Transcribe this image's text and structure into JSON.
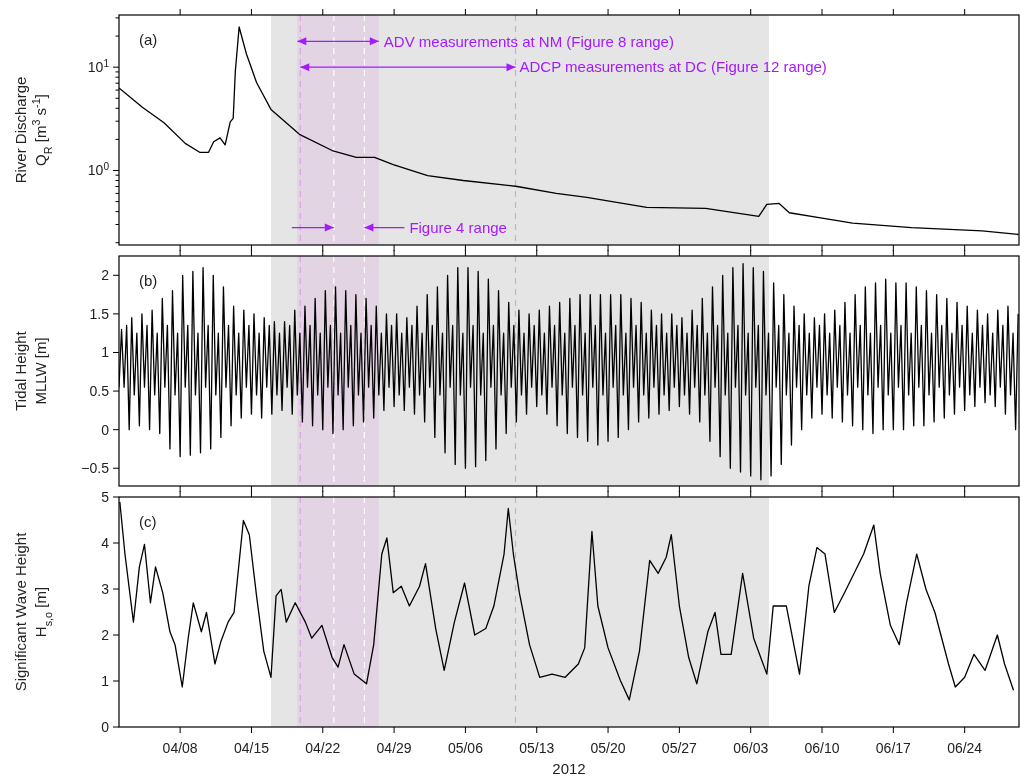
{
  "chart_data": [
    {
      "type": "line",
      "ylabel": "River Discharge\nQ$_{R}$ [m$^{3}$ s$^{-1}$]",
      "log": true,
      "tick_labels": "y",
      "xlim": [
        "2012-04-02T00:00",
        "2012-06-29T08:00"
      ],
      "ylim": [
        0.19,
        32
      ],
      "xticks": [
        {
          "value": "2012-04-08",
          "label": null
        },
        {
          "value": "2012-04-15",
          "label": null
        },
        {
          "value": "2012-04-22",
          "label": null
        },
        {
          "value": "2012-04-29",
          "label": null
        },
        {
          "value": "2012-05-06",
          "label": null
        },
        {
          "value": "2012-05-13",
          "label": null
        },
        {
          "value": "2012-05-20",
          "label": null
        },
        {
          "value": "2012-05-27",
          "label": null
        },
        {
          "value": "2012-06-03",
          "label": null
        },
        {
          "value": "2012-06-10",
          "label": null
        },
        {
          "value": "2012-06-17",
          "label": null
        },
        {
          "value": "2012-06-24",
          "label": null
        }
      ],
      "yticks": [
        {
          "value": 0.2,
          "label": null
        },
        {
          "value": 0.3,
          "label": null
        },
        {
          "value": 0.4,
          "label": null
        },
        {
          "value": 0.5,
          "label": null
        },
        {
          "value": 0.6,
          "label": null
        },
        {
          "value": 0.7,
          "label": null
        },
        {
          "value": 0.8,
          "label": null
        },
        {
          "value": 0.9,
          "label": null
        },
        {
          "value": 1,
          "label": "10$^{0}$"
        },
        {
          "value": 2,
          "label": null
        },
        {
          "value": 3,
          "label": null
        },
        {
          "value": 4,
          "label": null
        },
        {
          "value": 5,
          "label": null
        },
        {
          "value": 6,
          "label": null
        },
        {
          "value": 7,
          "label": null
        },
        {
          "value": 8,
          "label": null
        },
        {
          "value": 9,
          "label": null
        },
        {
          "value": 10,
          "label": "10$^{1}$"
        },
        {
          "value": 20,
          "label": null
        },
        {
          "value": 30,
          "label": null
        }
      ],
      "bands": [
        {
          "axis": "x",
          "from": "2012-04-16T22:00",
          "to": "2012-06-04T19:00",
          "color": "#e5e5e5"
        },
        {
          "axis": "x",
          "from": "2012-04-19T12:00",
          "to": "2012-04-27T12:00",
          "color": "#e2d4e3"
        }
      ],
      "ref_lines": [
        {
          "axis": "x",
          "value": "2012-04-19T19:00",
          "color": "#d9a3e3",
          "line_style": "dashed"
        },
        {
          "axis": "x",
          "value": "2012-05-10T22:00",
          "color": "#d9a3e3",
          "line_style": "dashed"
        },
        {
          "axis": "x",
          "value": "2012-04-23T02:00",
          "color": "#ffffff",
          "line_style": "dashed"
        },
        {
          "axis": "x",
          "value": "2012-04-26T02:00",
          "color": "#ffffff",
          "line_style": "dashed"
        }
      ],
      "annotations": [
        "(a)",
        {
          "text": "ADV measurements at NM (Figure 8 range)",
          "x": "2012-04-27T12:00",
          "y": 17.8
        },
        {
          "text": "ADCP measurements at DC (Figure 12 range)",
          "x": "2012-05-10T22:00",
          "y": 10
        },
        {
          "text": "Figure 4 range",
          "x": "2012-04-26T02:00",
          "y": 0.28
        }
      ],
      "series": [
        {
          "color": "#000000",
          "x": [
            "2012-04-02T00:00",
            "2012-04-04T07:00",
            "2012-04-06T10:00",
            "2012-04-08T12:00",
            "2012-04-09T22:00",
            "2012-04-10T19:00",
            "2012-04-11T07:00",
            "2012-04-11T22:00",
            "2012-04-12T10:00",
            "2012-04-12T22:00",
            "2012-04-13T05:00",
            "2012-04-13T10:00",
            "2012-04-13T19:00",
            "2012-04-14T12:00",
            "2012-04-15T12:00",
            "2012-04-16T22:00",
            "2012-04-19T17:00",
            "2012-04-22T22:00",
            "2012-04-25T07:00",
            "2012-04-27T02:00",
            "2012-04-28T22:00",
            "2012-05-02T07:00",
            "2012-05-05T19:00",
            "2012-05-11T02:00",
            "2012-05-14T22:00",
            "2012-05-17T22:00",
            "2012-05-23T19:00",
            "2012-05-29T14:00",
            "2012-06-03T19:00",
            "2012-06-04T14:00",
            "2012-06-05T19:00",
            "2012-06-06T19:00",
            "2012-06-09T17:00",
            "2012-06-13T00:00",
            "2012-06-18T19:00",
            "2012-06-25T17:00",
            "2012-06-29T07:00"
          ],
          "values": [
            6.3,
            4.1,
            2.9,
            1.83,
            1.5,
            1.5,
            1.9,
            2.07,
            1.77,
            2.95,
            3.2,
            9.1,
            24.5,
            13.5,
            7.1,
            3.9,
            2.24,
            1.56,
            1.34,
            1.34,
            1.14,
            0.89,
            0.8,
            0.7,
            0.6,
            0.55,
            0.44,
            0.43,
            0.36,
            0.47,
            0.48,
            0.39,
            0.35,
            0.31,
            0.28,
            0.26,
            0.24
          ]
        }
      ]
    },
    {
      "type": "line",
      "ylabel": "Tidal Height\nMLLW [m]",
      "tick_labels": "y",
      "xlim": [
        "2012-04-02T00:00",
        "2012-06-29T08:00"
      ],
      "ylim": [
        -0.73,
        2.25
      ],
      "xticks": [
        {
          "value": "2012-04-08",
          "label": null
        },
        {
          "value": "2012-04-15",
          "label": null
        },
        {
          "value": "2012-04-22",
          "label": null
        },
        {
          "value": "2012-04-29",
          "label": null
        },
        {
          "value": "2012-05-06",
          "label": null
        },
        {
          "value": "2012-05-13",
          "label": null
        },
        {
          "value": "2012-05-20",
          "label": null
        },
        {
          "value": "2012-05-27",
          "label": null
        },
        {
          "value": "2012-06-03",
          "label": null
        },
        {
          "value": "2012-06-10",
          "label": null
        },
        {
          "value": "2012-06-17",
          "label": null
        },
        {
          "value": "2012-06-24",
          "label": null
        }
      ],
      "yticks": [
        {
          "value": -0.5,
          "label": "−0.5"
        },
        0,
        0.5,
        1,
        1.5,
        2
      ],
      "bands": [
        {
          "axis": "x",
          "from": "2012-04-16T22:00",
          "to": "2012-06-04T19:00",
          "color": "#e5e5e5"
        },
        {
          "axis": "x",
          "from": "2012-04-19T12:00",
          "to": "2012-04-27T12:00",
          "color": "#e2d4e3"
        }
      ],
      "ref_lines": [
        {
          "axis": "x",
          "value": "2012-04-19T19:00",
          "color": "#d9a3e3",
          "line_style": "dashed"
        },
        {
          "axis": "x",
          "value": "2012-05-10T22:00",
          "color": "#d9a3e3",
          "line_style": "dashed"
        },
        {
          "axis": "x",
          "value": "2012-04-23T02:00",
          "color": "#ffffff",
          "line_style": "dashed"
        },
        {
          "axis": "x",
          "value": "2012-04-26T02:00",
          "color": "#ffffff",
          "line_style": "dashed"
        }
      ],
      "annotations": [
        "(b)"
      ],
      "series": [
        {
          "color": "#000000",
          "x": [
            "2012-04-02T00:00",
            "2012-04-02T06:00",
            "2012-04-02T12:00",
            "2012-04-02T18:00",
            "2012-04-03T00:00",
            "2012-04-03T06:00",
            "2012-04-03T12:00",
            "2012-04-03T18:00",
            "2012-04-04T00:00",
            "2012-04-04T06:00",
            "2012-04-04T12:00",
            "2012-04-04T18:00",
            "2012-04-05T00:00",
            "2012-04-05T06:00",
            "2012-04-05T12:00",
            "2012-04-05T18:00",
            "2012-04-06T00:00",
            "2012-04-06T06:00",
            "2012-04-06T12:00",
            "2012-04-06T18:00",
            "2012-04-07T00:00",
            "2012-04-07T06:00",
            "2012-04-07T12:00",
            "2012-04-07T18:00",
            "2012-04-08T00:00",
            "2012-04-08T06:00",
            "2012-04-08T12:00",
            "2012-04-08T18:00",
            "2012-04-09T00:00",
            "2012-04-09T06:00",
            "2012-04-09T12:00",
            "2012-04-09T18:00",
            "2012-04-10T00:00",
            "2012-04-10T06:00",
            "2012-04-10T12:00",
            "2012-04-10T18:00",
            "2012-04-11T00:00",
            "2012-04-11T06:00",
            "2012-04-11T12:00",
            "2012-04-11T18:00",
            "2012-04-12T00:00",
            "2012-04-12T06:00",
            "2012-04-12T12:00",
            "2012-04-12T18:00",
            "2012-04-13T00:00",
            "2012-04-13T06:00",
            "2012-04-13T12:00",
            "2012-04-13T18:00",
            "2012-04-14T00:00",
            "2012-04-14T06:00",
            "2012-04-14T12:00",
            "2012-04-14T18:00",
            "2012-04-15T00:00",
            "2012-04-15T06:00",
            "2012-04-15T12:00",
            "2012-04-15T18:00",
            "2012-04-16T00:00",
            "2012-04-16T06:00",
            "2012-04-16T12:00",
            "2012-04-16T18:00",
            "2012-04-17T00:00",
            "2012-04-17T06:00",
            "2012-04-17T12:00",
            "2012-04-17T18:00",
            "2012-04-18T00:00",
            "2012-04-18T06:00",
            "2012-04-18T12:00",
            "2012-04-18T18:00",
            "2012-04-19T00:00",
            "2012-04-19T06:00",
            "2012-04-19T12:00",
            "2012-04-19T18:00",
            "2012-04-20T00:00",
            "2012-04-20T06:00",
            "2012-04-20T12:00",
            "2012-04-20T18:00",
            "2012-04-21T00:00",
            "2012-04-21T06:00",
            "2012-04-21T12:00",
            "2012-04-21T18:00",
            "2012-04-22T00:00",
            "2012-04-22T06:00",
            "2012-04-22T12:00",
            "2012-04-22T18:00",
            "2012-04-23T00:00",
            "2012-04-23T06:00",
            "2012-04-23T12:00",
            "2012-04-23T18:00",
            "2012-04-24T00:00",
            "2012-04-24T06:00",
            "2012-04-24T12:00",
            "2012-04-24T18:00",
            "2012-04-25T00:00",
            "2012-04-25T06:00",
            "2012-04-25T12:00",
            "2012-04-25T18:00",
            "2012-04-26T00:00",
            "2012-04-26T06:00",
            "2012-04-26T12:00",
            "2012-04-26T18:00",
            "2012-04-27T00:00",
            "2012-04-27T06:00",
            "2012-04-27T12:00",
            "2012-04-27T18:00",
            "2012-04-28T00:00",
            "2012-04-28T06:00",
            "2012-04-28T12:00",
            "2012-04-28T18:00",
            "2012-04-29T00:00",
            "2012-04-29T06:00",
            "2012-04-29T12:00",
            "2012-04-29T18:00",
            "2012-04-30T00:00",
            "2012-04-30T06:00",
            "2012-04-30T12:00",
            "2012-04-30T18:00",
            "2012-05-01T00:00",
            "2012-05-01T06:00",
            "2012-05-01T12:00",
            "2012-05-01T18:00",
            "2012-05-02T00:00",
            "2012-05-02T06:00",
            "2012-05-02T12:00",
            "2012-05-02T18:00",
            "2012-05-03T00:00",
            "2012-05-03T06:00",
            "2012-05-03T12:00",
            "2012-05-03T18:00",
            "2012-05-04T00:00",
            "2012-05-04T06:00",
            "2012-05-04T12:00",
            "2012-05-04T18:00",
            "2012-05-05T00:00",
            "2012-05-05T06:00",
            "2012-05-05T12:00",
            "2012-05-05T18:00",
            "2012-05-06T00:00",
            "2012-05-06T06:00",
            "2012-05-06T12:00",
            "2012-05-06T18:00",
            "2012-05-07T00:00",
            "2012-05-07T06:00",
            "2012-05-07T12:00",
            "2012-05-07T18:00",
            "2012-05-08T00:00",
            "2012-05-08T06:00",
            "2012-05-08T12:00",
            "2012-05-08T18:00",
            "2012-05-09T00:00",
            "2012-05-09T06:00",
            "2012-05-09T12:00",
            "2012-05-09T18:00",
            "2012-05-10T00:00",
            "2012-05-10T06:00",
            "2012-05-10T12:00",
            "2012-05-10T18:00",
            "2012-05-11T00:00",
            "2012-05-11T06:00",
            "2012-05-11T12:00",
            "2012-05-11T18:00",
            "2012-05-12T00:00",
            "2012-05-12T06:00",
            "2012-05-12T12:00",
            "2012-05-12T18:00",
            "2012-05-13T00:00",
            "2012-05-13T06:00",
            "2012-05-13T12:00",
            "2012-05-13T18:00",
            "2012-05-14T00:00",
            "2012-05-14T06:00",
            "2012-05-14T12:00",
            "2012-05-14T18:00",
            "2012-05-15T00:00",
            "2012-05-15T06:00",
            "2012-05-15T12:00",
            "2012-05-15T18:00",
            "2012-05-16T00:00",
            "2012-05-16T06:00",
            "2012-05-16T12:00",
            "2012-05-16T18:00",
            "2012-05-17T00:00",
            "2012-05-17T06:00",
            "2012-05-17T12:00",
            "2012-05-17T18:00",
            "2012-05-18T00:00",
            "2012-05-18T06:00",
            "2012-05-18T12:00",
            "2012-05-18T18:00",
            "2012-05-19T00:00",
            "2012-05-19T06:00",
            "2012-05-19T12:00",
            "2012-05-19T18:00",
            "2012-05-20T00:00",
            "2012-05-20T06:00",
            "2012-05-20T12:00",
            "2012-05-20T18:00",
            "2012-05-21T00:00",
            "2012-05-21T06:00",
            "2012-05-21T12:00",
            "2012-05-21T18:00",
            "2012-05-22T00:00",
            "2012-05-22T06:00",
            "2012-05-22T12:00",
            "2012-05-22T18:00",
            "2012-05-23T00:00",
            "2012-05-23T06:00",
            "2012-05-23T12:00",
            "2012-05-23T18:00",
            "2012-05-24T00:00",
            "2012-05-24T06:00",
            "2012-05-24T12:00",
            "2012-05-24T18:00",
            "2012-05-25T00:00",
            "2012-05-25T06:00",
            "2012-05-25T12:00",
            "2012-05-25T18:00",
            "2012-05-26T00:00",
            "2012-05-26T06:00",
            "2012-05-26T12:00",
            "2012-05-26T18:00",
            "2012-05-27T00:00",
            "2012-05-27T06:00",
            "2012-05-27T12:00",
            "2012-05-27T18:00",
            "2012-05-28T00:00",
            "2012-05-28T06:00",
            "2012-05-28T12:00",
            "2012-05-28T18:00",
            "2012-05-29T00:00",
            "2012-05-29T06:00",
            "2012-05-29T12:00",
            "2012-05-29T18:00",
            "2012-05-30T00:00",
            "2012-05-30T06:00",
            "2012-05-30T12:00",
            "2012-05-30T18:00",
            "2012-05-31T00:00",
            "2012-05-31T06:00",
            "2012-05-31T12:00",
            "2012-05-31T18:00",
            "2012-06-01T00:00",
            "2012-06-01T06:00",
            "2012-06-01T12:00",
            "2012-06-01T18:00",
            "2012-06-02T00:00",
            "2012-06-02T06:00",
            "2012-06-02T12:00",
            "2012-06-02T18:00",
            "2012-06-03T00:00",
            "2012-06-03T06:00",
            "2012-06-03T12:00",
            "2012-06-03T18:00",
            "2012-06-04T00:00",
            "2012-06-04T06:00",
            "2012-06-04T12:00",
            "2012-06-04T18:00",
            "2012-06-05T00:00",
            "2012-06-05T06:00",
            "2012-06-05T12:00",
            "2012-06-05T18:00",
            "2012-06-06T00:00",
            "2012-06-06T06:00",
            "2012-06-06T12:00",
            "2012-06-06T18:00",
            "2012-06-07T00:00",
            "2012-06-07T06:00",
            "2012-06-07T12:00",
            "2012-06-07T18:00",
            "2012-06-08T00:00",
            "2012-06-08T06:00",
            "2012-06-08T12:00",
            "2012-06-08T18:00",
            "2012-06-09T00:00",
            "2012-06-09T06:00",
            "2012-06-09T12:00",
            "2012-06-09T18:00",
            "2012-06-10T00:00",
            "2012-06-10T06:00",
            "2012-06-10T12:00",
            "2012-06-10T18:00",
            "2012-06-11T00:00",
            "2012-06-11T06:00",
            "2012-06-11T12:00",
            "2012-06-11T18:00",
            "2012-06-12T00:00",
            "2012-06-12T06:00",
            "2012-06-12T12:00",
            "2012-06-12T18:00",
            "2012-06-13T00:00",
            "2012-06-13T06:00",
            "2012-06-13T12:00",
            "2012-06-13T18:00",
            "2012-06-14T00:00",
            "2012-06-14T06:00",
            "2012-06-14T12:00",
            "2012-06-14T18:00",
            "2012-06-15T00:00",
            "2012-06-15T06:00",
            "2012-06-15T12:00",
            "2012-06-15T18:00",
            "2012-06-16T00:00",
            "2012-06-16T06:00",
            "2012-06-16T12:00",
            "2012-06-16T18:00",
            "2012-06-17T00:00",
            "2012-06-17T06:00",
            "2012-06-17T12:00",
            "2012-06-17T18:00",
            "2012-06-18T00:00",
            "2012-06-18T06:00",
            "2012-06-18T12:00",
            "2012-06-18T18:00",
            "2012-06-19T00:00",
            "2012-06-19T06:00",
            "2012-06-19T12:00",
            "2012-06-19T18:00",
            "2012-06-20T00:00",
            "2012-06-20T06:00",
            "2012-06-20T12:00",
            "2012-06-20T18:00",
            "2012-06-21T00:00",
            "2012-06-21T06:00",
            "2012-06-21T12:00",
            "2012-06-21T18:00",
            "2012-06-22T00:00",
            "2012-06-22T06:00",
            "2012-06-22T12:00",
            "2012-06-22T18:00",
            "2012-06-23T00:00",
            "2012-06-23T06:00",
            "2012-06-23T12:00",
            "2012-06-23T18:00",
            "2012-06-24T00:00",
            "2012-06-24T06:00",
            "2012-06-24T12:00",
            "2012-06-24T18:00",
            "2012-06-25T00:00",
            "2012-06-25T06:00",
            "2012-06-25T12:00",
            "2012-06-25T18:00",
            "2012-06-26T00:00",
            "2012-06-26T06:00",
            "2012-06-26T12:00",
            "2012-06-26T18:00",
            "2012-06-27T00:00",
            "2012-06-27T06:00",
            "2012-06-27T12:00",
            "2012-06-27T18:00",
            "2012-06-28T00:00",
            "2012-06-28T06:00",
            "2012-06-28T12:00",
            "2012-06-28T18:00",
            "2012-06-29T00:00",
            "2012-06-29T06:00"
          ],
          "values": [
            0.55,
            1.3,
            0.55,
            1.35,
            0,
            1.45,
            0.45,
            1.25,
            0.05,
            1.5,
            0.55,
            1.35,
            0,
            1.55,
            0.45,
            1.25,
            -0.05,
            1.7,
            0.55,
            1.35,
            -0.25,
            1.8,
            0.45,
            1.25,
            -0.35,
            2,
            0.55,
            1.35,
            -0.33,
            2.05,
            0.45,
            1.25,
            -0.3,
            2.1,
            0.55,
            1.35,
            -0.25,
            2,
            0.45,
            1.25,
            -0.1,
            1.85,
            0.55,
            1.35,
            0.05,
            1.6,
            0.45,
            1.25,
            0.15,
            1.55,
            0.55,
            1.35,
            0.2,
            1.5,
            0.45,
            1.25,
            0.15,
            1.45,
            0.55,
            1.35,
            0.2,
            1.4,
            0.45,
            1.25,
            0.25,
            1.4,
            0.55,
            1.35,
            0.2,
            1.55,
            0.45,
            1.25,
            0.1,
            1.6,
            0.55,
            1.35,
            0.05,
            1.7,
            0.45,
            1.25,
            0,
            1.8,
            0.55,
            1.35,
            -0.05,
            1.85,
            0.45,
            1.25,
            0,
            1.8,
            0.55,
            1.35,
            0.05,
            1.75,
            0.45,
            1.25,
            0.1,
            1.7,
            0.55,
            1.35,
            0.15,
            1.6,
            0.45,
            1.25,
            0.25,
            1.5,
            0.55,
            1.35,
            0.3,
            1.5,
            0.45,
            1.25,
            0.25,
            1.45,
            0.55,
            1.35,
            0.2,
            1.6,
            0.45,
            1.25,
            0.1,
            1.75,
            0.55,
            1.35,
            -0.1,
            1.85,
            0.45,
            1.25,
            -0.3,
            2,
            0.55,
            1.35,
            -0.45,
            2.1,
            0.45,
            1.25,
            -0.5,
            2.1,
            0.55,
            1.35,
            -0.48,
            2.05,
            0.45,
            1.25,
            -0.4,
            1.95,
            0.55,
            1.35,
            -0.25,
            1.8,
            0.45,
            1.25,
            -0.05,
            1.65,
            0.55,
            1.35,
            0.1,
            1.55,
            0.45,
            1.25,
            0.2,
            1.5,
            0.55,
            1.35,
            0.3,
            1.55,
            0.45,
            1.25,
            0.2,
            1.6,
            0.55,
            1.35,
            0.05,
            1.65,
            0.45,
            1.25,
            -0.05,
            1.7,
            0.55,
            1.35,
            -0.1,
            1.75,
            0.45,
            1.25,
            -0.15,
            1.75,
            0.55,
            1.35,
            -0.2,
            1.75,
            0.45,
            1.25,
            -0.15,
            1.75,
            0.55,
            1.35,
            -0.1,
            1.75,
            0.45,
            1.25,
            0,
            1.7,
            0.55,
            1.35,
            0.1,
            1.65,
            0.45,
            1.25,
            0.15,
            1.55,
            0.55,
            1.35,
            0.2,
            1.5,
            0.45,
            1.25,
            0.25,
            1.5,
            0.55,
            1.35,
            0.3,
            1.45,
            0.45,
            1.25,
            0.2,
            1.55,
            0.55,
            1.35,
            0.1,
            1.7,
            0.45,
            1.25,
            -0.15,
            1.85,
            0.55,
            1.35,
            -0.35,
            2,
            0.45,
            1.25,
            -0.5,
            2.1,
            0.55,
            1.35,
            -0.55,
            2.15,
            0.45,
            1.25,
            -0.6,
            2.1,
            0.55,
            1.35,
            -0.65,
            2.05,
            0.45,
            1.25,
            -0.6,
            1.9,
            0.55,
            1.35,
            -0.45,
            1.75,
            0.45,
            1.25,
            -0.2,
            1.6,
            0.55,
            1.35,
            0,
            1.5,
            0.45,
            1.25,
            0.15,
            1.45,
            0.55,
            1.35,
            0.2,
            1.5,
            0.45,
            1.25,
            0.15,
            1.55,
            0.55,
            1.35,
            0.1,
            1.65,
            0.45,
            1.25,
            0.05,
            1.75,
            0.55,
            1.35,
            0,
            1.85,
            0.45,
            1.25,
            -0.05,
            1.9,
            0.55,
            1.35,
            0,
            1.95,
            0.45,
            1.25,
            0,
            1.9,
            0.55,
            1.35,
            0,
            1.9,
            0.45,
            1.25,
            0.05,
            1.85,
            0.55,
            1.35,
            0.05,
            1.8,
            0.45,
            1.25,
            0.1,
            1.75,
            0.55,
            1.35,
            0.15,
            1.7,
            0.45,
            1.25,
            0.2,
            1.65,
            0.55,
            1.35,
            0.25,
            1.6,
            0.45,
            1.25,
            0.3,
            1.55,
            0.55,
            1.35,
            0.35,
            1.5,
            0.45,
            1.25,
            0.3,
            1.55,
            0.55,
            1.35,
            0.2,
            1.6,
            0.45,
            1.25,
            0,
            1.5
          ]
        }
      ]
    },
    {
      "type": "line",
      "ylabel": "Significant Wave Height\nH$_{s,o}$ [m]",
      "xlabel": "2012",
      "xlim": [
        "2012-04-02T00:00",
        "2012-06-29T08:00"
      ],
      "ylim": [
        0,
        5
      ],
      "xticks": [
        {
          "value": "2012-04-08",
          "label": "04/08"
        },
        {
          "value": "2012-04-15",
          "label": "04/15"
        },
        {
          "value": "2012-04-22",
          "label": "04/22"
        },
        {
          "value": "2012-04-29",
          "label": "04/29"
        },
        {
          "value": "2012-05-06",
          "label": "05/06"
        },
        {
          "value": "2012-05-13",
          "label": "05/13"
        },
        {
          "value": "2012-05-20",
          "label": "05/20"
        },
        {
          "value": "2012-05-27",
          "label": "05/27"
        },
        {
          "value": "2012-06-03",
          "label": "06/03"
        },
        {
          "value": "2012-06-10",
          "label": "06/10"
        },
        {
          "value": "2012-06-17",
          "label": "06/17"
        },
        {
          "value": "2012-06-24",
          "label": "06/24"
        }
      ],
      "yticks": [
        0,
        1,
        2,
        3,
        4,
        5
      ],
      "bands": [
        {
          "axis": "x",
          "from": "2012-04-16T22:00",
          "to": "2012-06-04T19:00",
          "color": "#e5e5e5"
        },
        {
          "axis": "x",
          "from": "2012-04-19T12:00",
          "to": "2012-04-27T12:00",
          "color": "#e2d4e3"
        }
      ],
      "ref_lines": [
        {
          "axis": "x",
          "value": "2012-04-19T19:00",
          "color": "#d9a3e3",
          "line_style": "dashed"
        },
        {
          "axis": "x",
          "value": "2012-05-10T22:00",
          "color": "#d9a3e3",
          "line_style": "dashed"
        },
        {
          "axis": "x",
          "value": "2012-04-23T02:00",
          "color": "#ffffff",
          "line_style": "dashed"
        },
        {
          "axis": "x",
          "value": "2012-04-26T02:00",
          "color": "#ffffff",
          "line_style": "dashed"
        }
      ],
      "annotations": [
        "(c)"
      ],
      "series": [
        {
          "color": "#000000",
          "x": [
            "2012-04-02T02:00",
            "2012-04-02T14:00",
            "2012-04-03T10:00",
            "2012-04-04T00:00",
            "2012-04-04T12:00",
            "2012-04-05T02:00",
            "2012-04-05T14:00",
            "2012-04-06T07:00",
            "2012-04-07T00:00",
            "2012-04-07T12:00",
            "2012-04-08T05:00",
            "2012-04-08T19:00",
            "2012-04-09T07:00",
            "2012-04-10T02:00",
            "2012-04-10T14:00",
            "2012-04-11T10:00",
            "2012-04-12T00:00",
            "2012-04-12T17:00",
            "2012-04-13T07:00",
            "2012-04-14T05:00",
            "2012-04-14T19:00",
            "2012-04-15T12:00",
            "2012-04-16T05:00",
            "2012-04-16T22:00",
            "2012-04-17T10:00",
            "2012-04-17T22:00",
            "2012-04-18T10:00",
            "2012-04-19T07:00",
            "2012-04-20T07:00",
            "2012-04-20T22:00",
            "2012-04-21T22:00",
            "2012-04-22T22:00",
            "2012-04-23T12:00",
            "2012-04-24T02:00",
            "2012-04-25T02:00",
            "2012-04-26T07:00",
            "2012-04-27T00:00",
            "2012-04-27T19:00",
            "2012-04-28T07:00",
            "2012-04-28T22:00",
            "2012-04-29T17:00",
            "2012-04-30T12:00",
            "2012-05-01T12:00",
            "2012-05-02T02:00",
            "2012-05-03T02:00",
            "2012-05-03T22:00",
            "2012-05-04T22:00",
            "2012-05-05T22:00",
            "2012-05-06T22:00",
            "2012-05-08T00:00",
            "2012-05-08T19:00",
            "2012-05-09T19:00",
            "2012-05-10T05:00",
            "2012-05-10T17:00",
            "2012-05-11T07:00",
            "2012-05-12T07:00",
            "2012-05-13T07:00",
            "2012-05-14T12:00",
            "2012-05-15T19:00",
            "2012-05-17T02:00",
            "2012-05-17T17:00",
            "2012-05-18T10:00",
            "2012-05-19T00:00",
            "2012-05-20T00:00",
            "2012-05-21T05:00",
            "2012-05-22T02:00",
            "2012-05-23T02:00",
            "2012-05-24T02:00",
            "2012-05-24T22:00",
            "2012-05-25T17:00",
            "2012-05-26T05:00",
            "2012-05-27T00:00",
            "2012-05-27T22:00",
            "2012-05-28T17:00",
            "2012-05-29T19:00",
            "2012-05-30T12:00",
            "2012-05-31T02:00",
            "2012-06-01T02:00",
            "2012-06-02T05:00",
            "2012-06-03T07:00",
            "2012-06-04T14:00",
            "2012-06-05T05:00",
            "2012-06-06T12:00",
            "2012-06-07T19:00",
            "2012-06-08T17:00",
            "2012-06-09T12:00",
            "2012-06-10T07:00",
            "2012-06-11T05:00",
            "2012-06-12T05:00",
            "2012-06-14T02:00",
            "2012-06-15T02:00",
            "2012-06-15T17:00",
            "2012-06-16T17:00",
            "2012-06-17T14:00",
            "2012-06-18T07:00",
            "2012-06-19T07:00",
            "2012-06-20T05:00",
            "2012-06-21T02:00",
            "2012-06-22T10:00",
            "2012-06-23T02:00",
            "2012-06-24T00:00",
            "2012-06-24T22:00",
            "2012-06-26T00:00",
            "2012-06-27T05:00",
            "2012-06-27T22:00",
            "2012-06-28T19:00"
          ],
          "values": [
            4.89,
            3.76,
            2.28,
            3.48,
            3.97,
            2.7,
            3.48,
            2.92,
            2.07,
            1.79,
            0.87,
            1.93,
            2.7,
            2.07,
            2.49,
            1.37,
            1.86,
            2.28,
            2.49,
            4.49,
            4.18,
            2.85,
            1.65,
            1.08,
            2.85,
            2.99,
            2.28,
            2.7,
            2.28,
            1.93,
            2.21,
            1.51,
            1.3,
            1.79,
            1.15,
            0.94,
            1.79,
            3.76,
            4.11,
            2.92,
            3.06,
            2.63,
            3.06,
            3.55,
            2.14,
            1.23,
            2.28,
            3.13,
            2,
            2.14,
            2.63,
            3.76,
            4.75,
            3.76,
            2.92,
            1.79,
            1.08,
            1.15,
            1.08,
            1.37,
            1.72,
            4.25,
            2.63,
            1.72,
            1.01,
            0.59,
            1.65,
            3.62,
            3.34,
            3.69,
            4.18,
            2.63,
            1.51,
            0.94,
            2.07,
            2.49,
            1.58,
            1.58,
            3.34,
            1.93,
            1.15,
            2.63,
            2.63,
            1.15,
            3.06,
            3.9,
            3.76,
            2.49,
            2.92,
            3.76,
            4.39,
            3.34,
            2.21,
            1.79,
            2.7,
            3.76,
            2.99,
            2.49,
            1.37,
            0.87,
            1.08,
            1.58,
            1.23,
            2,
            1.37,
            0.8
          ]
        }
      ]
    }
  ]
}
